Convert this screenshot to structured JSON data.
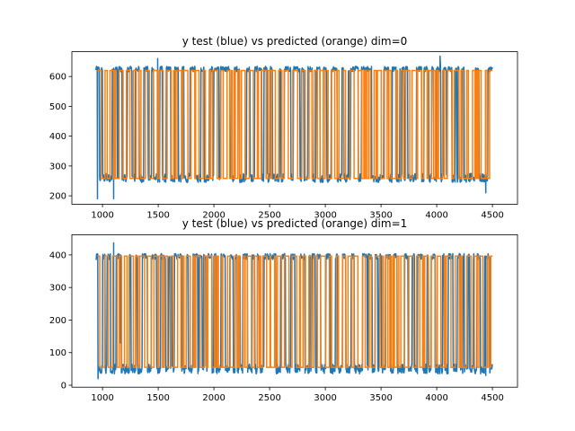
{
  "chart_data": [
    {
      "type": "line",
      "title": "y test (blue) vs predicted (orange) dim=0",
      "xlim": [
        725,
        4725
      ],
      "ylim": [
        172,
        683
      ],
      "xticks": [
        1000,
        1500,
        2000,
        2500,
        3000,
        3500,
        4000,
        4500
      ],
      "xtick_labels": [
        "1000",
        "1500",
        "2000",
        "2500",
        "3000",
        "3500",
        "4000",
        "4500"
      ],
      "yticks": [
        200,
        300,
        400,
        500,
        600
      ],
      "ytick_labels": [
        "200",
        "300",
        "400",
        "500",
        "600"
      ],
      "grid": false,
      "series": [
        {
          "color": "#1f77b4",
          "x_range": [
            940,
            4500
          ],
          "baseline_high": 625,
          "baseline_low": 260,
          "min": 190,
          "max": 668,
          "spikes": [
            [
              1100,
              190
            ],
            [
              1495,
              660
            ],
            [
              4030,
              668
            ],
            [
              4440,
              210
            ],
            [
              955,
              190
            ]
          ]
        },
        {
          "color": "#ff7f0e",
          "x_range": [
            955,
            4500
          ],
          "high": 620,
          "low": 258
        }
      ]
    },
    {
      "type": "line",
      "title": "y test (blue) vs predicted (orange) dim=1",
      "xlim": [
        725,
        4725
      ],
      "ylim": [
        -6,
        462
      ],
      "xticks": [
        1000,
        1500,
        2000,
        2500,
        3000,
        3500,
        4000,
        4500
      ],
      "xtick_labels": [
        "1000",
        "1500",
        "2000",
        "2500",
        "3000",
        "3500",
        "4000",
        "4500"
      ],
      "yticks": [
        0,
        100,
        200,
        300,
        400
      ],
      "ytick_labels": [
        "0",
        "100",
        "200",
        "300",
        "400"
      ],
      "grid": false,
      "series": [
        {
          "color": "#1f77b4",
          "x_range": [
            940,
            4500
          ],
          "baseline_high": 395,
          "baseline_low": 50,
          "min": 20,
          "max": 437,
          "spikes": [
            [
              960,
              20
            ],
            [
              1100,
              437
            ],
            [
              4440,
              30
            ],
            [
              1160,
              130
            ]
          ]
        },
        {
          "color": "#ff7f0e",
          "x_range": [
            955,
            4500
          ],
          "high": 396,
          "low": 55
        }
      ]
    }
  ]
}
